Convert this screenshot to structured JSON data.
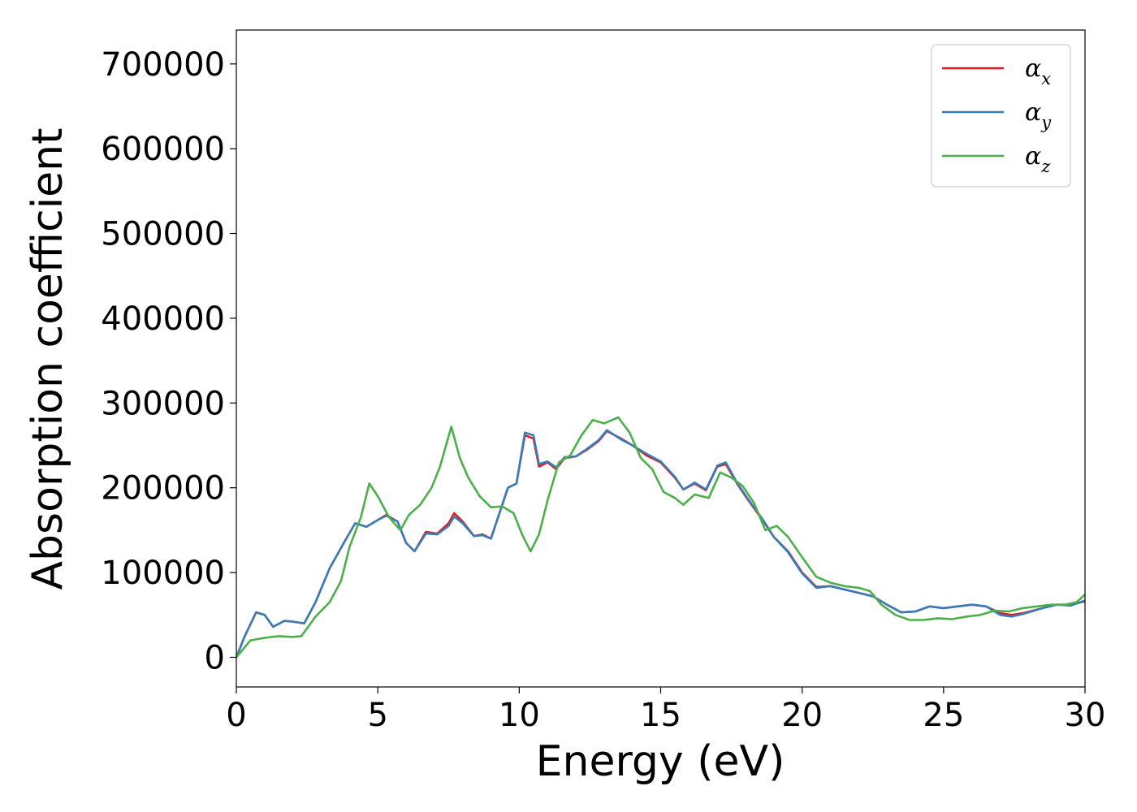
{
  "chart_data": {
    "type": "line",
    "xlabel": "Energy (eV)",
    "ylabel": "Absorption coefficient",
    "xlim": [
      0,
      30
    ],
    "ylim": [
      -35000,
      740000
    ],
    "x_ticks": [
      0,
      5,
      10,
      15,
      20,
      25,
      30
    ],
    "y_ticks": [
      0,
      100000,
      200000,
      300000,
      400000,
      500000,
      600000,
      700000
    ],
    "grid": false,
    "legend_position": "top-right",
    "series": [
      {
        "name": "αx",
        "legend_base": "α",
        "legend_sub": "x",
        "color": "#e41a1c",
        "points": [
          [
            0,
            0
          ],
          [
            0.3,
            25000
          ],
          [
            0.7,
            53000
          ],
          [
            1.0,
            50000
          ],
          [
            1.3,
            36000
          ],
          [
            1.7,
            43000
          ],
          [
            2.0,
            42000
          ],
          [
            2.4,
            40000
          ],
          [
            2.8,
            65000
          ],
          [
            3.3,
            105000
          ],
          [
            3.8,
            135000
          ],
          [
            4.2,
            158000
          ],
          [
            4.6,
            154000
          ],
          [
            5.0,
            162000
          ],
          [
            5.3,
            168000
          ],
          [
            5.7,
            160000
          ],
          [
            6.0,
            135000
          ],
          [
            6.3,
            125000
          ],
          [
            6.7,
            148000
          ],
          [
            7.1,
            146000
          ],
          [
            7.5,
            158000
          ],
          [
            7.7,
            170000
          ],
          [
            8.0,
            160000
          ],
          [
            8.4,
            143000
          ],
          [
            8.7,
            145000
          ],
          [
            9.0,
            140000
          ],
          [
            9.3,
            170000
          ],
          [
            9.6,
            200000
          ],
          [
            9.9,
            205000
          ],
          [
            10.2,
            262000
          ],
          [
            10.5,
            258000
          ],
          [
            10.7,
            225000
          ],
          [
            11.0,
            230000
          ],
          [
            11.3,
            222000
          ],
          [
            11.6,
            235000
          ],
          [
            12.0,
            237000
          ],
          [
            12.4,
            245000
          ],
          [
            12.8,
            255000
          ],
          [
            13.1,
            267000
          ],
          [
            13.6,
            258000
          ],
          [
            14.0,
            250000
          ],
          [
            14.5,
            238000
          ],
          [
            15.0,
            230000
          ],
          [
            15.5,
            212000
          ],
          [
            15.8,
            198000
          ],
          [
            16.2,
            205000
          ],
          [
            16.6,
            197000
          ],
          [
            17.0,
            225000
          ],
          [
            17.3,
            228000
          ],
          [
            17.7,
            205000
          ],
          [
            18.1,
            185000
          ],
          [
            18.6,
            162000
          ],
          [
            19.0,
            142000
          ],
          [
            19.5,
            125000
          ],
          [
            20.0,
            100000
          ],
          [
            20.5,
            83000
          ],
          [
            21.0,
            84000
          ],
          [
            21.5,
            80000
          ],
          [
            22.0,
            76000
          ],
          [
            22.5,
            72000
          ],
          [
            23.0,
            62000
          ],
          [
            23.5,
            53000
          ],
          [
            24.0,
            54000
          ],
          [
            24.5,
            60000
          ],
          [
            25.0,
            58000
          ],
          [
            25.5,
            60000
          ],
          [
            26.0,
            62000
          ],
          [
            26.5,
            60000
          ],
          [
            27.0,
            52000
          ],
          [
            27.4,
            50000
          ],
          [
            27.8,
            52000
          ],
          [
            28.5,
            58000
          ],
          [
            29.0,
            62000
          ],
          [
            29.5,
            62000
          ],
          [
            30.0,
            66000
          ]
        ]
      },
      {
        "name": "αy",
        "legend_base": "α",
        "legend_sub": "y",
        "color": "#377eb8",
        "points": [
          [
            0,
            0
          ],
          [
            0.3,
            25000
          ],
          [
            0.7,
            53000
          ],
          [
            1.0,
            50000
          ],
          [
            1.3,
            36000
          ],
          [
            1.7,
            43000
          ],
          [
            2.0,
            42000
          ],
          [
            2.4,
            40000
          ],
          [
            2.8,
            65000
          ],
          [
            3.3,
            105000
          ],
          [
            3.8,
            135000
          ],
          [
            4.2,
            158000
          ],
          [
            4.6,
            154000
          ],
          [
            5.0,
            162000
          ],
          [
            5.3,
            167000
          ],
          [
            5.7,
            160000
          ],
          [
            6.0,
            135000
          ],
          [
            6.3,
            125000
          ],
          [
            6.7,
            146000
          ],
          [
            7.1,
            145000
          ],
          [
            7.5,
            155000
          ],
          [
            7.7,
            166000
          ],
          [
            8.0,
            158000
          ],
          [
            8.4,
            143000
          ],
          [
            8.7,
            144000
          ],
          [
            9.0,
            140000
          ],
          [
            9.3,
            170000
          ],
          [
            9.6,
            200000
          ],
          [
            9.9,
            205000
          ],
          [
            10.2,
            265000
          ],
          [
            10.5,
            262000
          ],
          [
            10.7,
            228000
          ],
          [
            11.0,
            231000
          ],
          [
            11.3,
            224000
          ],
          [
            11.6,
            236000
          ],
          [
            12.0,
            237000
          ],
          [
            12.4,
            246000
          ],
          [
            12.8,
            256000
          ],
          [
            13.1,
            268000
          ],
          [
            13.6,
            257000
          ],
          [
            14.0,
            250000
          ],
          [
            14.5,
            240000
          ],
          [
            15.0,
            231000
          ],
          [
            15.5,
            213000
          ],
          [
            15.8,
            198000
          ],
          [
            16.2,
            206000
          ],
          [
            16.6,
            198000
          ],
          [
            17.0,
            226000
          ],
          [
            17.3,
            230000
          ],
          [
            17.7,
            206000
          ],
          [
            18.1,
            186000
          ],
          [
            18.6,
            163000
          ],
          [
            19.0,
            142000
          ],
          [
            19.5,
            124000
          ],
          [
            20.0,
            99000
          ],
          [
            20.5,
            82000
          ],
          [
            21.0,
            84000
          ],
          [
            21.5,
            80000
          ],
          [
            22.0,
            76000
          ],
          [
            22.5,
            72000
          ],
          [
            23.0,
            62000
          ],
          [
            23.5,
            53000
          ],
          [
            24.0,
            54000
          ],
          [
            24.5,
            60000
          ],
          [
            25.0,
            58000
          ],
          [
            25.5,
            60000
          ],
          [
            26.0,
            62000
          ],
          [
            26.5,
            60000
          ],
          [
            27.0,
            50000
          ],
          [
            27.4,
            48000
          ],
          [
            27.8,
            51000
          ],
          [
            28.5,
            58000
          ],
          [
            29.0,
            62000
          ],
          [
            29.5,
            61000
          ],
          [
            30.0,
            67000
          ]
        ]
      },
      {
        "name": "αz",
        "legend_base": "α",
        "legend_sub": "z",
        "color": "#4daf4a",
        "points": [
          [
            0,
            0
          ],
          [
            0.5,
            20000
          ],
          [
            1.0,
            23000
          ],
          [
            1.5,
            25000
          ],
          [
            2.0,
            24000
          ],
          [
            2.3,
            25000
          ],
          [
            2.8,
            48000
          ],
          [
            3.3,
            65000
          ],
          [
            3.7,
            90000
          ],
          [
            4.0,
            130000
          ],
          [
            4.4,
            165000
          ],
          [
            4.7,
            205000
          ],
          [
            5.0,
            190000
          ],
          [
            5.4,
            165000
          ],
          [
            5.8,
            150000
          ],
          [
            6.1,
            168000
          ],
          [
            6.5,
            180000
          ],
          [
            6.9,
            200000
          ],
          [
            7.2,
            225000
          ],
          [
            7.6,
            272000
          ],
          [
            7.9,
            235000
          ],
          [
            8.2,
            212000
          ],
          [
            8.6,
            190000
          ],
          [
            9.0,
            177000
          ],
          [
            9.4,
            178000
          ],
          [
            9.8,
            170000
          ],
          [
            10.1,
            145000
          ],
          [
            10.4,
            125000
          ],
          [
            10.7,
            145000
          ],
          [
            11.0,
            185000
          ],
          [
            11.4,
            230000
          ],
          [
            11.8,
            238000
          ],
          [
            12.2,
            262000
          ],
          [
            12.6,
            280000
          ],
          [
            13.0,
            276000
          ],
          [
            13.5,
            283000
          ],
          [
            13.9,
            265000
          ],
          [
            14.3,
            235000
          ],
          [
            14.7,
            222000
          ],
          [
            15.1,
            195000
          ],
          [
            15.5,
            188000
          ],
          [
            15.8,
            180000
          ],
          [
            16.2,
            192000
          ],
          [
            16.7,
            188000
          ],
          [
            17.1,
            218000
          ],
          [
            17.5,
            212000
          ],
          [
            17.9,
            202000
          ],
          [
            18.3,
            182000
          ],
          [
            18.7,
            150000
          ],
          [
            19.1,
            155000
          ],
          [
            19.5,
            142000
          ],
          [
            20.0,
            118000
          ],
          [
            20.5,
            95000
          ],
          [
            21.0,
            88000
          ],
          [
            21.5,
            84000
          ],
          [
            22.0,
            82000
          ],
          [
            22.4,
            78000
          ],
          [
            22.8,
            62000
          ],
          [
            23.3,
            50000
          ],
          [
            23.8,
            44000
          ],
          [
            24.3,
            44000
          ],
          [
            24.8,
            46000
          ],
          [
            25.3,
            45000
          ],
          [
            25.8,
            48000
          ],
          [
            26.3,
            50000
          ],
          [
            26.8,
            55000
          ],
          [
            27.3,
            54000
          ],
          [
            27.8,
            58000
          ],
          [
            28.3,
            60000
          ],
          [
            28.8,
            62000
          ],
          [
            29.3,
            62000
          ],
          [
            29.7,
            65000
          ],
          [
            30.0,
            74000
          ]
        ]
      }
    ]
  }
}
